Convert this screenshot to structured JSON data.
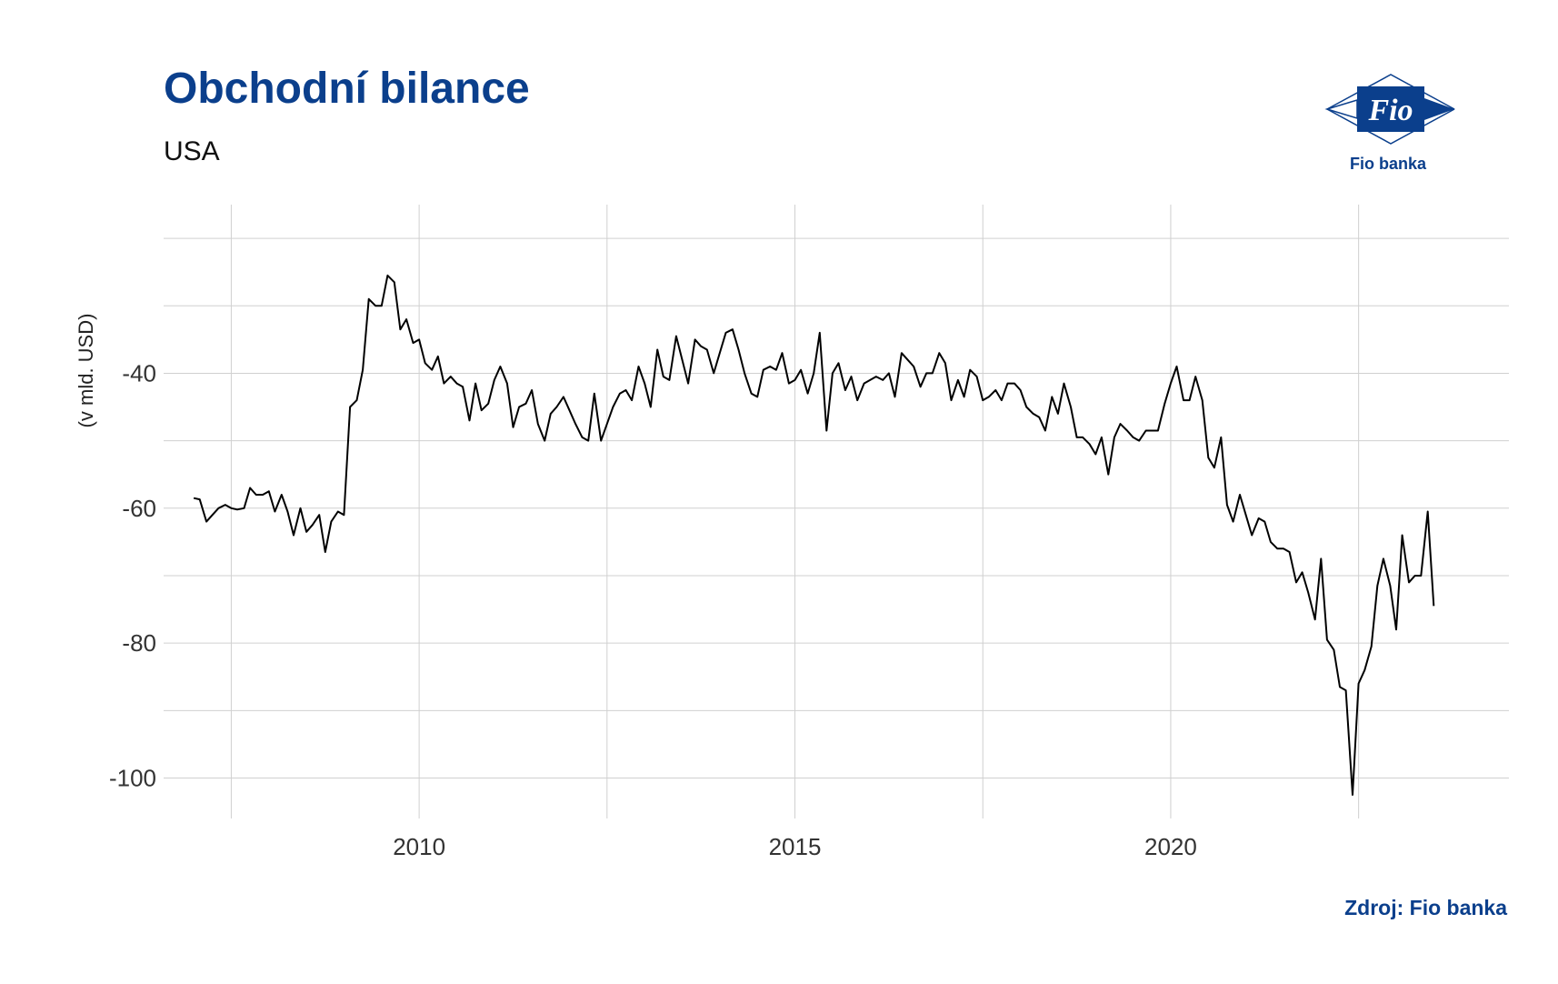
{
  "title": "Obchodní bilance",
  "subtitle": "USA",
  "source": "Zdroj: Fio banka",
  "logo": {
    "mark": "Fio",
    "name": "Fio banka"
  },
  "colors": {
    "brand": "#0b3f8c",
    "line": "#000000",
    "grid": "#d0d0d0"
  },
  "chart_data": {
    "type": "line",
    "ylabel": "(v mld. USD)",
    "xlim": [
      2006.6,
      2024.5
    ],
    "ylim": [
      -106,
      -15
    ],
    "x_ticks": [
      2010,
      2015,
      2020
    ],
    "x_tick_labels": [
      "2010",
      "2015",
      "2020"
    ],
    "y_ticks": [
      -100,
      -80,
      -60,
      -40
    ],
    "y_tick_labels": [
      "-100",
      "-80",
      "-60",
      "-40"
    ],
    "grid": true,
    "legend": "none",
    "series": [
      {
        "values": [
          [
            2007.0,
            -58.5
          ],
          [
            2007.08,
            -58.7
          ],
          [
            2007.17,
            -62.0
          ],
          [
            2007.25,
            -61.0
          ],
          [
            2007.33,
            -60.0
          ],
          [
            2007.42,
            -59.5
          ],
          [
            2007.5,
            -60.0
          ],
          [
            2007.58,
            -60.2
          ],
          [
            2007.67,
            -60.0
          ],
          [
            2007.75,
            -57.0
          ],
          [
            2007.83,
            -58.0
          ],
          [
            2007.92,
            -58.0
          ],
          [
            2008.0,
            -57.5
          ],
          [
            2008.08,
            -60.5
          ],
          [
            2008.17,
            -58.0
          ],
          [
            2008.25,
            -60.5
          ],
          [
            2008.33,
            -64.0
          ],
          [
            2008.42,
            -60.0
          ],
          [
            2008.5,
            -63.5
          ],
          [
            2008.58,
            -62.5
          ],
          [
            2008.67,
            -61.0
          ],
          [
            2008.75,
            -66.5
          ],
          [
            2008.83,
            -62.0
          ],
          [
            2008.92,
            -60.5
          ],
          [
            2009.0,
            -61.0
          ],
          [
            2009.08,
            -45.0
          ],
          [
            2009.17,
            -44.0
          ],
          [
            2009.25,
            -39.5
          ],
          [
            2009.33,
            -29.0
          ],
          [
            2009.42,
            -30.0
          ],
          [
            2009.5,
            -30.0
          ],
          [
            2009.58,
            -25.5
          ],
          [
            2009.67,
            -26.5
          ],
          [
            2009.75,
            -33.5
          ],
          [
            2009.83,
            -32.0
          ],
          [
            2009.92,
            -35.5
          ],
          [
            2010.0,
            -35.0
          ],
          [
            2010.08,
            -38.5
          ],
          [
            2010.17,
            -39.5
          ],
          [
            2010.25,
            -37.5
          ],
          [
            2010.33,
            -41.5
          ],
          [
            2010.42,
            -40.5
          ],
          [
            2010.5,
            -41.5
          ],
          [
            2010.58,
            -42.0
          ],
          [
            2010.67,
            -47.0
          ],
          [
            2010.75,
            -41.5
          ],
          [
            2010.83,
            -45.5
          ],
          [
            2010.92,
            -44.5
          ],
          [
            2011.0,
            -41.0
          ],
          [
            2011.08,
            -39.0
          ],
          [
            2011.17,
            -41.5
          ],
          [
            2011.25,
            -48.0
          ],
          [
            2011.33,
            -45.0
          ],
          [
            2011.42,
            -44.5
          ],
          [
            2011.5,
            -42.5
          ],
          [
            2011.58,
            -47.5
          ],
          [
            2011.67,
            -50.0
          ],
          [
            2011.75,
            -46.0
          ],
          [
            2011.83,
            -45.0
          ],
          [
            2011.92,
            -43.5
          ],
          [
            2012.0,
            -45.5
          ],
          [
            2012.08,
            -47.5
          ],
          [
            2012.17,
            -49.5
          ],
          [
            2012.25,
            -50.0
          ],
          [
            2012.33,
            -43.0
          ],
          [
            2012.42,
            -50.0
          ],
          [
            2012.5,
            -47.5
          ],
          [
            2012.58,
            -45.0
          ],
          [
            2012.67,
            -43.0
          ],
          [
            2012.75,
            -42.5
          ],
          [
            2012.83,
            -44.0
          ],
          [
            2012.92,
            -39.0
          ],
          [
            2013.0,
            -41.5
          ],
          [
            2013.08,
            -45.0
          ],
          [
            2013.17,
            -36.5
          ],
          [
            2013.25,
            -40.5
          ],
          [
            2013.33,
            -41.0
          ],
          [
            2013.42,
            -34.5
          ],
          [
            2013.5,
            -38.0
          ],
          [
            2013.58,
            -41.5
          ],
          [
            2013.67,
            -35.0
          ],
          [
            2013.75,
            -36.0
          ],
          [
            2013.83,
            -36.5
          ],
          [
            2013.92,
            -40.0
          ],
          [
            2014.0,
            -37.0
          ],
          [
            2014.08,
            -34.0
          ],
          [
            2014.17,
            -33.5
          ],
          [
            2014.25,
            -36.5
          ],
          [
            2014.33,
            -40.0
          ],
          [
            2014.42,
            -43.0
          ],
          [
            2014.5,
            -43.5
          ],
          [
            2014.58,
            -39.5
          ],
          [
            2014.67,
            -39.0
          ],
          [
            2014.75,
            -39.5
          ],
          [
            2014.83,
            -37.0
          ],
          [
            2014.92,
            -41.5
          ],
          [
            2015.0,
            -41.0
          ],
          [
            2015.08,
            -39.5
          ],
          [
            2015.17,
            -43.0
          ],
          [
            2015.25,
            -40.0
          ],
          [
            2015.33,
            -34.0
          ],
          [
            2015.42,
            -48.5
          ],
          [
            2015.5,
            -40.0
          ],
          [
            2015.58,
            -38.5
          ],
          [
            2015.67,
            -42.5
          ],
          [
            2015.75,
            -40.5
          ],
          [
            2015.83,
            -44.0
          ],
          [
            2015.92,
            -41.5
          ],
          [
            2016.0,
            -41.0
          ],
          [
            2016.08,
            -40.5
          ],
          [
            2016.17,
            -41.0
          ],
          [
            2016.25,
            -40.0
          ],
          [
            2016.33,
            -43.5
          ],
          [
            2016.42,
            -37.0
          ],
          [
            2016.5,
            -38.0
          ],
          [
            2016.58,
            -39.0
          ],
          [
            2016.67,
            -42.0
          ],
          [
            2016.75,
            -40.0
          ],
          [
            2016.83,
            -40.0
          ],
          [
            2016.92,
            -37.0
          ],
          [
            2017.0,
            -38.5
          ],
          [
            2017.08,
            -44.0
          ],
          [
            2017.17,
            -41.0
          ],
          [
            2017.25,
            -43.5
          ],
          [
            2017.33,
            -39.5
          ],
          [
            2017.42,
            -40.5
          ],
          [
            2017.5,
            -44.0
          ],
          [
            2017.58,
            -43.5
          ],
          [
            2017.67,
            -42.5
          ],
          [
            2017.75,
            -44.0
          ],
          [
            2017.83,
            -41.5
          ],
          [
            2017.92,
            -41.5
          ],
          [
            2018.0,
            -42.5
          ],
          [
            2018.08,
            -45.0
          ],
          [
            2018.17,
            -46.0
          ],
          [
            2018.25,
            -46.5
          ],
          [
            2018.33,
            -48.5
          ],
          [
            2018.42,
            -43.5
          ],
          [
            2018.5,
            -46.0
          ],
          [
            2018.58,
            -41.5
          ],
          [
            2018.67,
            -45.0
          ],
          [
            2018.75,
            -49.5
          ],
          [
            2018.83,
            -49.5
          ],
          [
            2018.92,
            -50.5
          ],
          [
            2019.0,
            -52.0
          ],
          [
            2019.08,
            -49.5
          ],
          [
            2019.17,
            -55.0
          ],
          [
            2019.25,
            -49.5
          ],
          [
            2019.33,
            -47.5
          ],
          [
            2019.42,
            -48.5
          ],
          [
            2019.5,
            -49.5
          ],
          [
            2019.58,
            -50.0
          ],
          [
            2019.67,
            -48.5
          ],
          [
            2019.75,
            -48.5
          ],
          [
            2019.83,
            -48.5
          ],
          [
            2019.92,
            -44.5
          ],
          [
            2020.0,
            -41.5
          ],
          [
            2020.08,
            -39.0
          ],
          [
            2020.17,
            -44.0
          ],
          [
            2020.25,
            -44.0
          ],
          [
            2020.33,
            -40.5
          ],
          [
            2020.42,
            -44.0
          ],
          [
            2020.5,
            -52.5
          ],
          [
            2020.58,
            -54.0
          ],
          [
            2020.67,
            -49.5
          ],
          [
            2020.75,
            -59.5
          ],
          [
            2020.83,
            -62.0
          ],
          [
            2020.92,
            -58.0
          ],
          [
            2021.0,
            -61.0
          ],
          [
            2021.08,
            -64.0
          ],
          [
            2021.17,
            -61.5
          ],
          [
            2021.25,
            -62.0
          ],
          [
            2021.33,
            -65.0
          ],
          [
            2021.42,
            -66.0
          ],
          [
            2021.5,
            -66.0
          ],
          [
            2021.58,
            -66.5
          ],
          [
            2021.67,
            -71.0
          ],
          [
            2021.75,
            -69.5
          ],
          [
            2021.83,
            -72.5
          ],
          [
            2021.92,
            -76.5
          ],
          [
            2022.0,
            -67.5
          ],
          [
            2022.08,
            -79.5
          ],
          [
            2022.17,
            -81.0
          ],
          [
            2022.25,
            -86.5
          ],
          [
            2022.33,
            -87.0
          ],
          [
            2022.42,
            -102.5
          ],
          [
            2022.5,
            -86.0
          ],
          [
            2022.58,
            -84.0
          ],
          [
            2022.67,
            -80.5
          ],
          [
            2022.75,
            -71.5
          ],
          [
            2022.83,
            -67.5
          ],
          [
            2022.92,
            -71.5
          ],
          [
            2023.0,
            -78.0
          ],
          [
            2023.08,
            -64.0
          ],
          [
            2023.17,
            -71.0
          ],
          [
            2023.25,
            -70.0
          ],
          [
            2023.33,
            -70.0
          ],
          [
            2023.42,
            -60.5
          ],
          [
            2023.5,
            -74.5
          ]
        ]
      }
    ]
  }
}
